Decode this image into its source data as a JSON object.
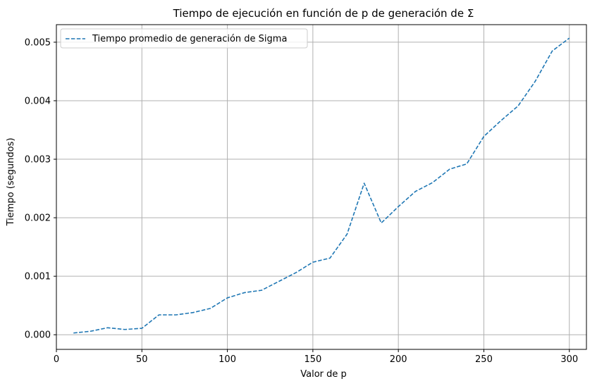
{
  "chart_data": {
    "type": "line",
    "title": "Tiempo de ejecución en función de p de generación de Σ",
    "xlabel": "Valor de p",
    "ylabel": "Tiempo (segundos)",
    "xlim": [
      0,
      310
    ],
    "ylim": [
      -0.00025,
      0.0053
    ],
    "xticks": [
      0,
      50,
      100,
      150,
      200,
      250,
      300
    ],
    "xtick_labels": [
      "0",
      "50",
      "100",
      "150",
      "200",
      "250",
      "300"
    ],
    "yticks": [
      0.0,
      0.001,
      0.002,
      0.003,
      0.004,
      0.005
    ],
    "ytick_labels": [
      "0.000",
      "0.001",
      "0.002",
      "0.003",
      "0.004",
      "0.005"
    ],
    "grid": true,
    "legend_position": "upper-left",
    "series": [
      {
        "name": "Tiempo promedio de generación de Sigma",
        "color": "#1f77b4",
        "linestyle": "dashed",
        "x": [
          10,
          20,
          30,
          40,
          50,
          60,
          70,
          80,
          90,
          100,
          110,
          120,
          130,
          140,
          150,
          160,
          170,
          180,
          190,
          200,
          210,
          220,
          230,
          240,
          250,
          260,
          270,
          280,
          290,
          300
        ],
        "y": [
          3e-05,
          6e-05,
          0.00012,
          9e-05,
          0.00011,
          0.00034,
          0.00034,
          0.00038,
          0.00045,
          0.00063,
          0.00072,
          0.00076,
          0.00091,
          0.00106,
          0.00124,
          0.00131,
          0.00172,
          0.00259,
          0.00191,
          0.00219,
          0.00245,
          0.0026,
          0.00283,
          0.00292,
          0.00339,
          0.00366,
          0.00391,
          0.00433,
          0.00485,
          0.00507
        ]
      }
    ]
  }
}
